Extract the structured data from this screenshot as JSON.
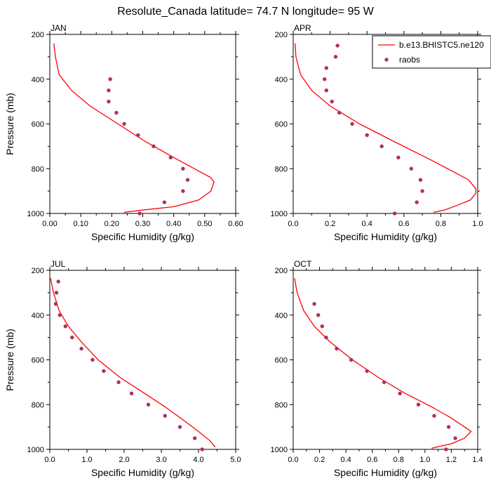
{
  "title": "Resolute_Canada  latitude= 74.7 N longitude= 95 W",
  "colors": {
    "model": "#ff0000",
    "obs": "#b03060",
    "axis": "#000000"
  },
  "legend": {
    "model_label": "b.e13.BHISTC5.ne120",
    "obs_label": "raobs",
    "placement": "top-right of APR panel"
  },
  "chart_data": [
    {
      "type": "line",
      "panel": "JAN",
      "xlabel": "Specific Humidity (g/kg)",
      "ylabel": "Pressure (mb)",
      "xlim": [
        0,
        0.6
      ],
      "ylim": [
        1000,
        200
      ],
      "x_ticks": [
        "0.00",
        "0.10",
        "0.20",
        "0.30",
        "0.40",
        "0.50",
        "0.60"
      ],
      "y_ticks": [
        "200",
        "400",
        "600",
        "800",
        "1000"
      ],
      "series": [
        {
          "name": "b.e13.BHISTC5.ne120",
          "style": "line",
          "points": [
            [
              0.013,
              240
            ],
            [
              0.018,
              300
            ],
            [
              0.03,
              380
            ],
            [
              0.07,
              450
            ],
            [
              0.13,
              520
            ],
            [
              0.22,
              600
            ],
            [
              0.31,
              680
            ],
            [
              0.4,
              750
            ],
            [
              0.48,
              810
            ],
            [
              0.52,
              840
            ],
            [
              0.53,
              860
            ],
            [
              0.52,
              900
            ],
            [
              0.48,
              940
            ],
            [
              0.4,
              970
            ],
            [
              0.3,
              985
            ],
            [
              0.24,
              995
            ]
          ]
        },
        {
          "name": "raobs",
          "style": "scatter",
          "points": [
            [
              0.195,
              400
            ],
            [
              0.19,
              450
            ],
            [
              0.19,
              500
            ],
            [
              0.215,
              550
            ],
            [
              0.24,
              600
            ],
            [
              0.285,
              650
            ],
            [
              0.335,
              700
            ],
            [
              0.39,
              750
            ],
            [
              0.43,
              800
            ],
            [
              0.445,
              850
            ],
            [
              0.43,
              900
            ],
            [
              0.37,
              950
            ],
            [
              0.29,
              1000
            ]
          ]
        }
      ]
    },
    {
      "type": "line",
      "panel": "APR",
      "xlabel": "Specific Humidity (g/kg)",
      "ylabel": "",
      "xlim": [
        0,
        1.0
      ],
      "ylim": [
        1000,
        200
      ],
      "x_ticks": [
        "0.0",
        "0.2",
        "0.4",
        "0.6",
        "0.8",
        "1.0"
      ],
      "y_ticks": [
        "200",
        "400",
        "600",
        "800",
        "1000"
      ],
      "series": [
        {
          "name": "b.e13.BHISTC5.ne120",
          "style": "line",
          "points": [
            [
              0.01,
              240
            ],
            [
              0.015,
              300
            ],
            [
              0.04,
              380
            ],
            [
              0.1,
              450
            ],
            [
              0.2,
              520
            ],
            [
              0.36,
              600
            ],
            [
              0.55,
              680
            ],
            [
              0.72,
              750
            ],
            [
              0.86,
              810
            ],
            [
              0.95,
              850
            ],
            [
              0.99,
              890
            ],
            [
              0.99,
              910
            ],
            [
              0.96,
              940
            ],
            [
              0.9,
              960
            ],
            [
              0.82,
              985
            ],
            [
              0.76,
              995
            ]
          ]
        },
        {
          "name": "raobs",
          "style": "scatter",
          "points": [
            [
              0.24,
              250
            ],
            [
              0.23,
              300
            ],
            [
              0.18,
              350
            ],
            [
              0.17,
              400
            ],
            [
              0.18,
              450
            ],
            [
              0.21,
              500
            ],
            [
              0.25,
              550
            ],
            [
              0.32,
              600
            ],
            [
              0.4,
              650
            ],
            [
              0.48,
              700
            ],
            [
              0.57,
              750
            ],
            [
              0.64,
              800
            ],
            [
              0.69,
              850
            ],
            [
              0.7,
              900
            ],
            [
              0.67,
              950
            ],
            [
              0.55,
              1000
            ]
          ]
        }
      ]
    },
    {
      "type": "line",
      "panel": "JUL",
      "xlabel": "Specific Humidity (g/kg)",
      "ylabel": "Pressure (mb)",
      "xlim": [
        0,
        5.0
      ],
      "ylim": [
        1000,
        200
      ],
      "x_ticks": [
        "0.0",
        "1.0",
        "2.0",
        "3.0",
        "4.0",
        "5.0"
      ],
      "y_ticks": [
        "200",
        "400",
        "600",
        "800",
        "1000"
      ],
      "series": [
        {
          "name": "b.e13.BHISTC5.ne120",
          "style": "line",
          "points": [
            [
              0.02,
              235
            ],
            [
              0.1,
              300
            ],
            [
              0.25,
              380
            ],
            [
              0.5,
              450
            ],
            [
              0.85,
              520
            ],
            [
              1.3,
              600
            ],
            [
              1.9,
              680
            ],
            [
              2.55,
              750
            ],
            [
              3.1,
              810
            ],
            [
              3.6,
              870
            ],
            [
              4.0,
              920
            ],
            [
              4.3,
              960
            ],
            [
              4.45,
              990
            ]
          ]
        },
        {
          "name": "raobs",
          "style": "scatter",
          "points": [
            [
              0.23,
              250
            ],
            [
              0.18,
              300
            ],
            [
              0.16,
              350
            ],
            [
              0.27,
              400
            ],
            [
              0.42,
              450
            ],
            [
              0.6,
              500
            ],
            [
              0.85,
              550
            ],
            [
              1.15,
              600
            ],
            [
              1.45,
              650
            ],
            [
              1.85,
              700
            ],
            [
              2.2,
              750
            ],
            [
              2.65,
              800
            ],
            [
              3.1,
              850
            ],
            [
              3.5,
              900
            ],
            [
              3.9,
              950
            ],
            [
              4.1,
              1000
            ]
          ]
        }
      ]
    },
    {
      "type": "line",
      "panel": "OCT",
      "xlabel": "Specific Humidity (g/kg)",
      "ylabel": "",
      "xlim": [
        0,
        1.4
      ],
      "ylim": [
        1000,
        200
      ],
      "x_ticks": [
        "0.0",
        "0.2",
        "0.4",
        "0.6",
        "0.8",
        "1.0",
        "1.2",
        "1.4"
      ],
      "y_ticks": [
        "200",
        "400",
        "600",
        "800",
        "1000"
      ],
      "series": [
        {
          "name": "b.e13.BHISTC5.ne120",
          "style": "line",
          "points": [
            [
              0.01,
              235
            ],
            [
              0.03,
              300
            ],
            [
              0.08,
              380
            ],
            [
              0.16,
              450
            ],
            [
              0.28,
              520
            ],
            [
              0.45,
              600
            ],
            [
              0.65,
              680
            ],
            [
              0.85,
              750
            ],
            [
              1.05,
              810
            ],
            [
              1.2,
              860
            ],
            [
              1.3,
              900
            ],
            [
              1.35,
              920
            ],
            [
              1.3,
              950
            ],
            [
              1.2,
              975
            ],
            [
              1.05,
              995
            ]
          ]
        },
        {
          "name": "raobs",
          "style": "scatter",
          "points": [
            [
              0.16,
              350
            ],
            [
              0.19,
              400
            ],
            [
              0.22,
              450
            ],
            [
              0.25,
              500
            ],
            [
              0.33,
              550
            ],
            [
              0.44,
              600
            ],
            [
              0.56,
              650
            ],
            [
              0.69,
              700
            ],
            [
              0.81,
              750
            ],
            [
              0.95,
              800
            ],
            [
              1.07,
              850
            ],
            [
              1.18,
              900
            ],
            [
              1.23,
              950
            ],
            [
              1.16,
              1000
            ]
          ]
        }
      ]
    }
  ]
}
